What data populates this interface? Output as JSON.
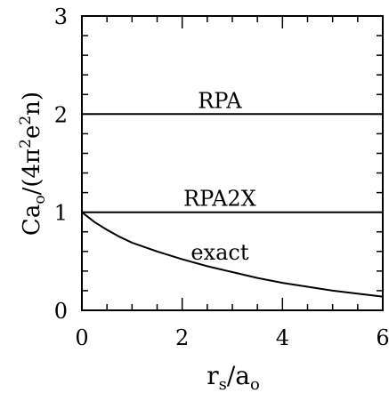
{
  "chart_data": {
    "type": "line",
    "xlabel": {
      "base": "r",
      "sub": "s",
      "mid": "/a",
      "sub2": "o"
    },
    "ylabel": {
      "pre": "Ca",
      "sub": "o",
      "mid": "/(4π",
      "sup1": "2",
      "mid2": "e",
      "sup2": "2",
      "post": "n)"
    },
    "xlim": [
      0,
      6
    ],
    "ylim": [
      0,
      3
    ],
    "x_ticks": [
      "0",
      "2",
      "4",
      "6"
    ],
    "y_ticks": [
      "0",
      "1",
      "2",
      "3"
    ],
    "grid": false,
    "series": [
      {
        "name": "RPA",
        "x": [
          0,
          6
        ],
        "y": [
          2,
          2
        ]
      },
      {
        "name": "RPA2X",
        "x": [
          0,
          6
        ],
        "y": [
          1,
          1
        ]
      },
      {
        "name": "exact",
        "x": [
          0,
          0.25,
          0.5,
          0.75,
          1,
          1.5,
          2,
          2.5,
          3,
          3.5,
          4,
          4.5,
          5,
          5.5,
          6
        ],
        "y": [
          1.0,
          0.9,
          0.82,
          0.75,
          0.69,
          0.6,
          0.52,
          0.45,
          0.39,
          0.33,
          0.28,
          0.24,
          0.2,
          0.17,
          0.14
        ]
      }
    ]
  }
}
